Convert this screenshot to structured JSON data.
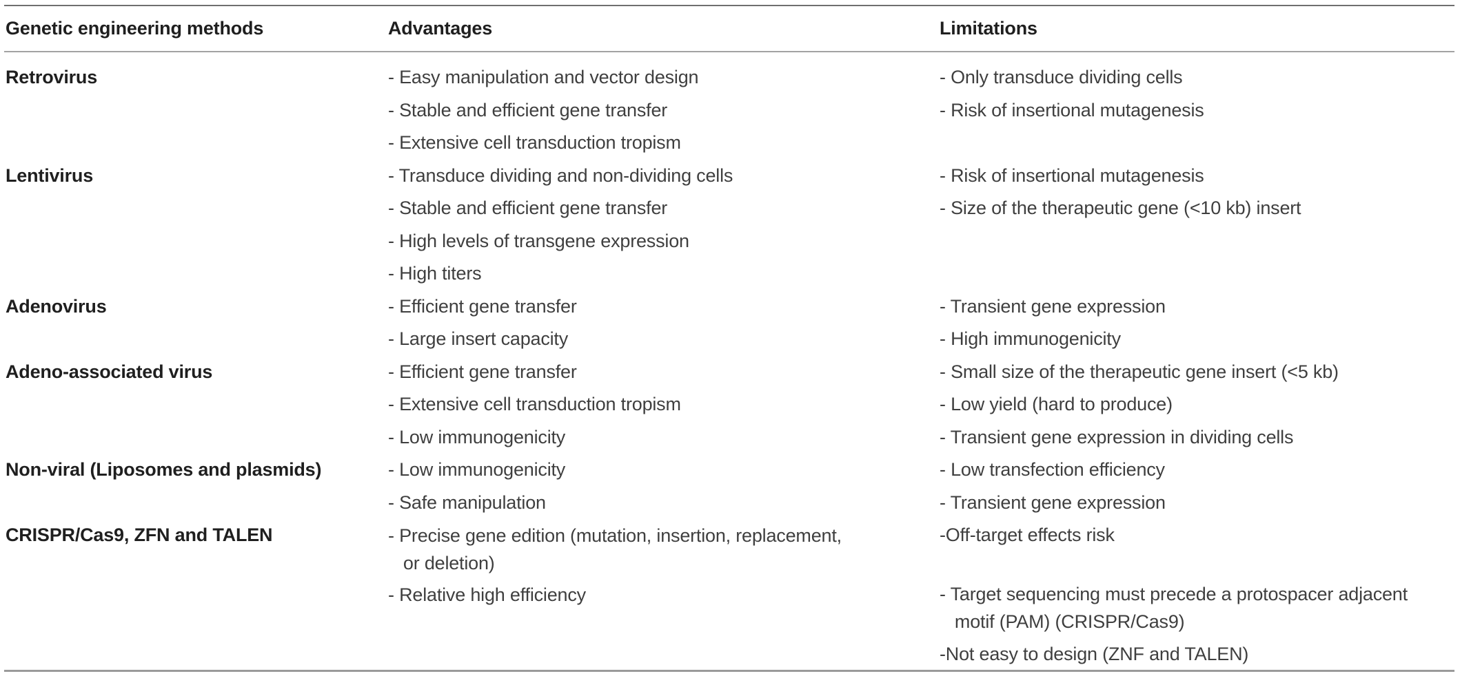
{
  "table": {
    "columns": [
      "Genetic engineering methods",
      "Advantages",
      "Limitations"
    ],
    "rows": [
      {
        "method": "Retrovirus",
        "advantages": [
          "- Easy manipulation and vector design",
          "- Stable and efficient gene transfer",
          "- Extensive cell transduction tropism"
        ],
        "limitations": [
          "- Only transduce dividing cells",
          "- Risk of insertional mutagenesis"
        ]
      },
      {
        "method": "Lentivirus",
        "advantages": [
          "- Transduce dividing and non-dividing cells",
          "- Stable and efficient gene transfer",
          "- High levels of transgene expression",
          "- High titers"
        ],
        "limitations": [
          "- Risk of insertional mutagenesis",
          "- Size of the therapeutic gene (<10 kb) insert"
        ]
      },
      {
        "method": "Adenovirus",
        "advantages": [
          "- Efficient gene transfer",
          "- Large insert capacity"
        ],
        "limitations": [
          "- Transient gene expression",
          "- High immunogenicity"
        ]
      },
      {
        "method": "Adeno-associated virus",
        "advantages": [
          "- Efficient gene transfer",
          "- Extensive cell transduction tropism",
          "- Low immunogenicity"
        ],
        "limitations": [
          "- Small size of the therapeutic gene insert (<5 kb)",
          "- Low yield (hard to produce)",
          "- Transient gene expression in dividing cells"
        ]
      },
      {
        "method": "Non-viral (Liposomes and plasmids)",
        "advantages": [
          "- Low immunogenicity",
          "- Safe manipulation"
        ],
        "limitations": [
          "- Low transfection efficiency",
          "- Transient gene expression"
        ]
      },
      {
        "method": "CRISPR/Cas9, ZFN and TALEN",
        "advantages": [
          "- Precise gene edition (mutation, insertion, replacement,\n   or deletion)",
          "- Relative high efficiency"
        ],
        "limitations": [
          "-Off-target effects risk",
          "",
          "- Target sequencing must precede a protospacer adjacent\n   motif (PAM) (CRISPR/Cas9)",
          "-Not easy to design (ZNF and TALEN)"
        ]
      }
    ]
  }
}
